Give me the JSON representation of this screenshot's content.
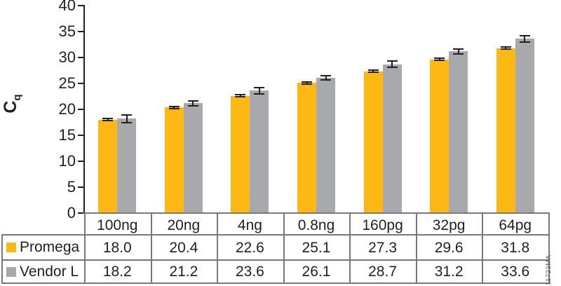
{
  "figure_code": "11723MA",
  "colors": {
    "promega_orange": "#FDB813",
    "vendor_gray": "#A7A9AC",
    "axis_and_text": "#231F20",
    "table_border": "#77787B",
    "figure_code_text": "#58595B",
    "background": "#FFFFFF"
  },
  "chart_data": {
    "type": "bar",
    "title": "",
    "ylabel_main": "C",
    "ylabel_sub": "q",
    "xlabel": "",
    "ylim": [
      0,
      40
    ],
    "yticks": [
      0,
      5,
      10,
      15,
      20,
      25,
      30,
      35,
      40
    ],
    "grid": false,
    "legend_position": "table-left",
    "categories": [
      "100ng",
      "20ng",
      "4ng",
      "0.8ng",
      "160pg",
      "32pg",
      "64pg"
    ],
    "series": [
      {
        "name": "Promega",
        "color": "#FDB813",
        "values": [
          18.0,
          20.4,
          22.6,
          25.1,
          27.3,
          29.6,
          31.8
        ],
        "errors": [
          0.2,
          0.2,
          0.3,
          0.2,
          0.3,
          0.3,
          0.3
        ]
      },
      {
        "name": "Vendor L",
        "color": "#A7A9AC",
        "values": [
          18.2,
          21.2,
          23.6,
          26.1,
          28.7,
          31.2,
          33.6
        ],
        "errors": [
          0.9,
          0.6,
          0.7,
          0.5,
          0.7,
          0.6,
          0.7
        ]
      }
    ]
  }
}
